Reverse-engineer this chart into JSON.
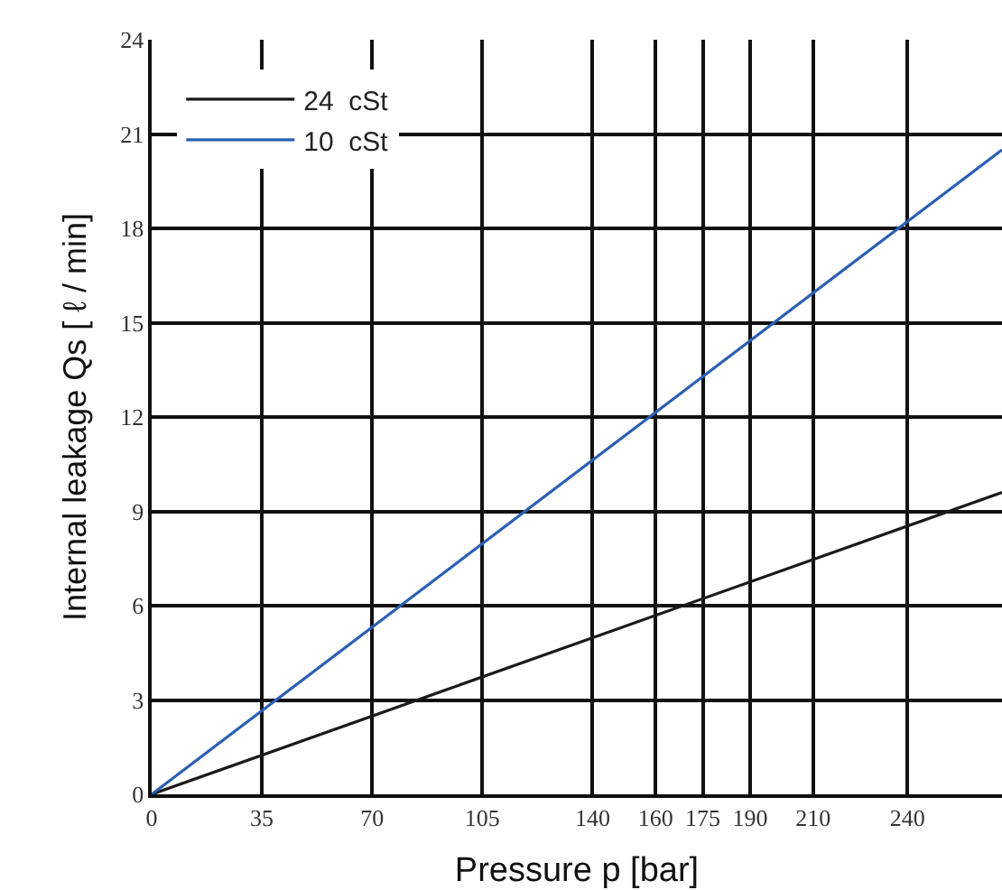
{
  "chart_data": {
    "type": "line",
    "xlabel": "Pressure p [bar]",
    "ylabel": "Internal leakage Qs [ ℓ / min]",
    "x": [
      0,
      270
    ],
    "series": [
      {
        "name": "24  cSt",
        "color": "#1a1a1a",
        "values": [
          0,
          9.6
        ]
      },
      {
        "name": "10  cSt",
        "color": "#2b5fb4",
        "values": [
          0,
          20.5
        ]
      }
    ],
    "xlim": [
      0,
      270
    ],
    "xticks": [
      0,
      35,
      70,
      105,
      140,
      160,
      175,
      190,
      210,
      240
    ],
    "ylim": [
      0,
      24
    ],
    "yticks": [
      0,
      3,
      6,
      9,
      12,
      15,
      18,
      21,
      24
    ],
    "grid": true,
    "legend": "top left",
    "marker": "none",
    "line_style": "solid"
  }
}
